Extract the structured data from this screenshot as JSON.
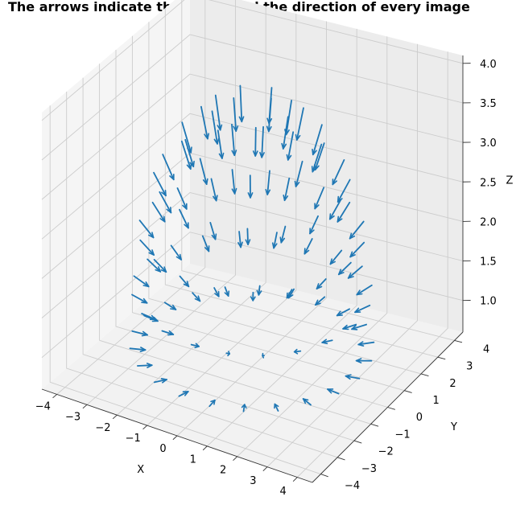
{
  "title": "The arrows indicate the origin and the direction of every image",
  "colors": {
    "arrow": "#1f77b4",
    "pane": "#f2f2f2",
    "grid": "#cccccc",
    "axis": "#000000"
  },
  "chart_data": {
    "type": "quiver3d",
    "title": "The arrows indicate the origin and the direction of every image",
    "xlabel": "X",
    "ylabel": "Y",
    "zlabel": "Z",
    "xlim": [
      -4.5,
      4.5
    ],
    "ylim": [
      -4.5,
      4.5
    ],
    "zlim": [
      0.6,
      4.1
    ],
    "xticks": [
      -4,
      -3,
      -2,
      -1,
      0,
      1,
      2,
      3,
      4
    ],
    "yticks": [
      -4,
      -3,
      -2,
      -1,
      0,
      1,
      2,
      3,
      4
    ],
    "zticks": [
      1.0,
      1.5,
      2.0,
      2.5,
      3.0,
      3.5,
      4.0
    ],
    "xtick_labels": [
      "−4",
      "−3",
      "−2",
      "−1",
      "0",
      "1",
      "2",
      "3",
      "4"
    ],
    "ytick_labels": [
      "−4",
      "−3",
      "−2",
      "−1",
      "0",
      "1",
      "2",
      "3",
      "4"
    ],
    "ztick_labels": [
      "1.0",
      "1.5",
      "2.0",
      "2.5",
      "3.0",
      "3.5",
      "4.0"
    ],
    "grid": true,
    "description_of_arrangement": "Camera origins on an upper hemisphere of radius ~3.5 around the point (0,0,0.7); each arrow points toward the center.",
    "rings": [
      {
        "z": 3.9,
        "radius": 1.2,
        "count": 8
      },
      {
        "z": 3.55,
        "radius": 2.1,
        "count": 12
      },
      {
        "z": 3.0,
        "radius": 2.85,
        "count": 16
      },
      {
        "z": 2.3,
        "radius": 3.3,
        "count": 18
      },
      {
        "z": 1.55,
        "radius": 3.5,
        "count": 20
      },
      {
        "z": 0.85,
        "radius": 3.55,
        "count": 22
      }
    ],
    "arrow_length": 0.45
  }
}
